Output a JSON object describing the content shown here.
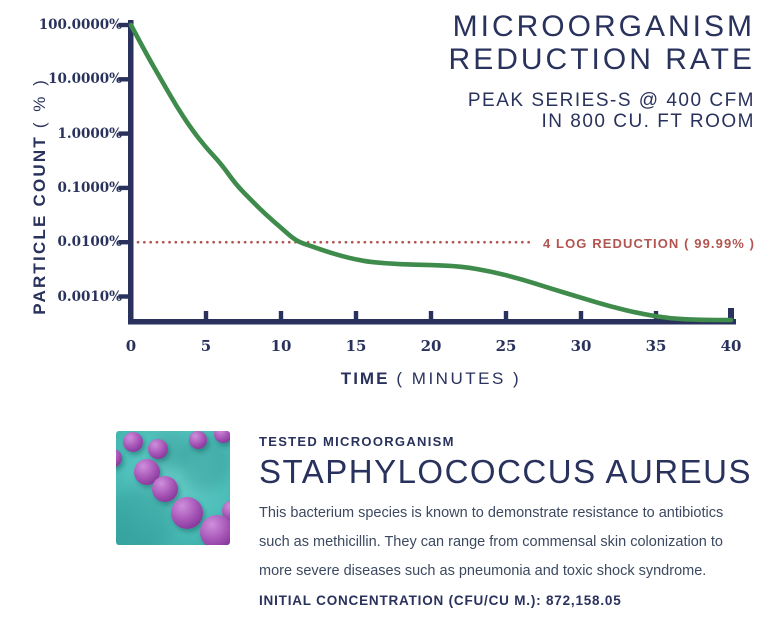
{
  "colors": {
    "navy": "#29325c",
    "green": "#3e8b4b",
    "red": "#b25450",
    "teal": "#4ebfba",
    "purple": "#a958b8",
    "body_text": "#3c4960"
  },
  "header": {
    "title_line1": "MICROORGANISM",
    "title_line2": "REDUCTION RATE",
    "subtitle_line1": "PEAK SERIES-S @ 400 CFM",
    "subtitle_line2": "IN 800 CU. FT ROOM"
  },
  "chart": {
    "y_axis_title": "PARTICLE COUNT",
    "y_axis_unit": "( % )",
    "x_axis_title": "TIME",
    "x_axis_unit": "( MINUTES )"
  },
  "chart_data": {
    "type": "line",
    "title": "MICROORGANISM REDUCTION RATE",
    "subtitle": "PEAK SERIES-S @ 400 CFM IN 800 CU. FT ROOM",
    "xlabel": "TIME ( MINUTES )",
    "ylabel": "PARTICLE COUNT ( % )",
    "y_scale": "log",
    "grid": false,
    "xlim": [
      0,
      40
    ],
    "ylim_percent": [
      0.0003,
      100
    ],
    "x_axis_ticks": [
      0,
      5,
      10,
      15,
      20,
      25,
      30,
      35,
      40
    ],
    "y_tick_labels": [
      "100.0000%",
      "10.0000%",
      "1.0000%",
      "0.1000%",
      "0.0100%",
      "0.0010%"
    ],
    "y_tick_percent": [
      100,
      10,
      1,
      0.1,
      0.01,
      0.001
    ],
    "series": [
      {
        "name": "particle-count-reduction",
        "color": "#3e8b4b",
        "x": [
          0,
          1,
          2,
          3,
          4,
          5,
          6,
          7,
          8,
          9,
          10,
          11,
          12,
          13,
          14,
          15,
          16,
          18,
          20,
          22,
          24,
          26,
          28,
          30,
          32,
          34,
          36,
          38,
          40
        ],
        "y_percent": [
          100,
          30,
          10,
          3.3,
          1.25,
          0.55,
          0.28,
          0.115,
          0.06,
          0.032,
          0.0185,
          0.0105,
          0.0085,
          0.0068,
          0.0056,
          0.0048,
          0.0043,
          0.0039,
          0.0038,
          0.0036,
          0.0029,
          0.0021,
          0.0014,
          0.00095,
          0.00065,
          0.00048,
          0.00039,
          0.00034,
          0.00033
        ]
      }
    ],
    "reference_line": {
      "label": "4 LOG REDUCTION ( 99.99% )",
      "y_percent": 0.01,
      "style": "dotted",
      "color": "#b25450"
    }
  },
  "info": {
    "eyebrow": "TESTED MICROORGANISM",
    "organism": "STAPHYLOCOCCUS AUREUS",
    "description_lines": [
      "This bacterium species is known to demonstrate resistance to antibiotics",
      "such as methicillin. They can range from commensal skin colonization to",
      "more severe diseases such as pneumonia and toxic shock syndrome."
    ],
    "initial_concentration": "INITIAL CONCENTRATION (CFU/CU M.): 872,158.05"
  }
}
